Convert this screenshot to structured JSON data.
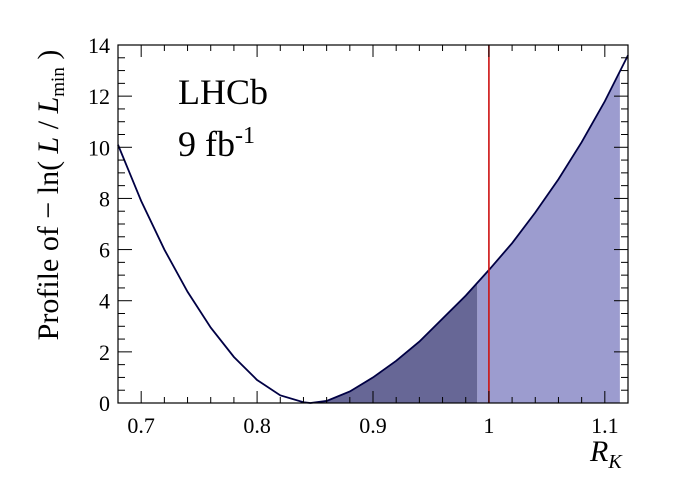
{
  "chart_data": {
    "type": "line",
    "title": "",
    "experiment_label": "LHCb",
    "lumi_label": {
      "base": "9 fb",
      "sup": "-1"
    },
    "ylabel": {
      "prefix": "Profile of − ln( ",
      "L1": "L",
      "sep": " / ",
      "L2": "L",
      "sub": "min",
      "suffix": " )"
    },
    "xlabel": {
      "main": "R",
      "sub": "K"
    },
    "xlim": [
      0.68,
      1.12
    ],
    "ylim": [
      0,
      14
    ],
    "x_ticks": [
      {
        "v": 0.7,
        "label": "0.7"
      },
      {
        "v": 0.8,
        "label": "0.8"
      },
      {
        "v": 0.9,
        "label": "0.9"
      },
      {
        "v": 1.0,
        "label": "1"
      },
      {
        "v": 1.1,
        "label": "1.1"
      }
    ],
    "y_ticks": [
      {
        "v": 0,
        "label": "0"
      },
      {
        "v": 2,
        "label": "2"
      },
      {
        "v": 4,
        "label": "4"
      },
      {
        "v": 6,
        "label": "6"
      },
      {
        "v": 8,
        "label": "8"
      },
      {
        "v": 10,
        "label": "10"
      },
      {
        "v": 12,
        "label": "12"
      },
      {
        "v": 14,
        "label": "14"
      }
    ],
    "grid": false,
    "profile_curve": {
      "x": [
        0.68,
        0.7,
        0.72,
        0.74,
        0.76,
        0.78,
        0.8,
        0.82,
        0.84,
        0.846,
        0.86,
        0.88,
        0.9,
        0.92,
        0.94,
        0.96,
        0.98,
        1.0,
        1.02,
        1.04,
        1.06,
        1.08,
        1.1,
        1.12
      ],
      "y": [
        10.1,
        7.9,
        6.0,
        4.35,
        2.95,
        1.8,
        0.9,
        0.3,
        0.03,
        0.0,
        0.08,
        0.45,
        1.0,
        1.65,
        2.4,
        3.3,
        4.2,
        5.2,
        6.25,
        7.45,
        8.75,
        10.2,
        11.8,
        13.6
      ],
      "color": "#000044"
    },
    "intervals": [
      {
        "from": 0.846,
        "to": 0.99,
        "color": "#676796"
      },
      {
        "from": 0.99,
        "to": 1.113,
        "color": "#9c9ccf"
      }
    ],
    "reference_line": {
      "x": 1.0,
      "color": "#cc1111"
    }
  }
}
